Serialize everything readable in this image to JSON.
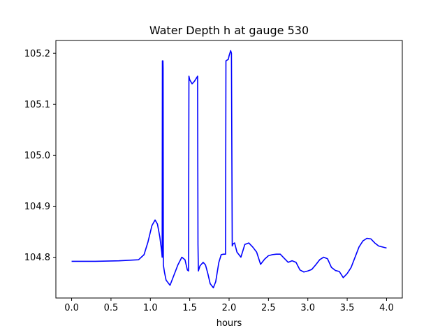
{
  "chart_data": {
    "type": "line",
    "title": "Water Depth h at gauge 530",
    "xlabel": "hours",
    "ylabel": "",
    "xlim": [
      -0.2,
      4.2
    ],
    "ylim": [
      104.72,
      105.225
    ],
    "x_ticks": [
      0.0,
      0.5,
      1.0,
      1.5,
      2.0,
      2.5,
      3.0,
      3.5,
      4.0
    ],
    "x_tick_labels": [
      "0.0",
      "0.5",
      "1.0",
      "1.5",
      "2.0",
      "2.5",
      "3.0",
      "3.5",
      "4.0"
    ],
    "y_ticks": [
      104.8,
      104.9,
      105.0,
      105.1,
      105.2
    ],
    "y_tick_labels": [
      "104.8",
      "104.9",
      "105.0",
      "105.1",
      "105.2"
    ],
    "grid": false,
    "legend": "none",
    "series": [
      {
        "color": "#0000ff",
        "x": [
          0.0,
          0.3,
          0.6,
          0.85,
          0.92,
          0.97,
          1.02,
          1.06,
          1.09,
          1.12,
          1.145,
          1.15,
          1.153,
          1.16,
          1.162,
          1.165,
          1.18,
          1.2,
          1.25,
          1.3,
          1.35,
          1.4,
          1.44,
          1.47,
          1.485,
          1.49,
          1.5,
          1.53,
          1.56,
          1.6,
          1.605,
          1.61,
          1.63,
          1.67,
          1.7,
          1.73,
          1.76,
          1.8,
          1.83,
          1.87,
          1.9,
          1.93,
          1.955,
          1.96,
          1.99,
          2.0,
          2.02,
          2.03,
          2.04,
          2.05,
          2.07,
          2.1,
          2.15,
          2.2,
          2.25,
          2.3,
          2.35,
          2.4,
          2.45,
          2.5,
          2.55,
          2.6,
          2.65,
          2.7,
          2.75,
          2.8,
          2.85,
          2.9,
          2.95,
          3.0,
          3.05,
          3.1,
          3.15,
          3.2,
          3.25,
          3.3,
          3.35,
          3.4,
          3.45,
          3.5,
          3.55,
          3.6,
          3.65,
          3.7,
          3.75,
          3.8,
          3.85,
          3.9,
          4.0
        ],
        "y": [
          104.792,
          104.792,
          104.793,
          104.795,
          104.805,
          104.83,
          104.862,
          104.873,
          104.865,
          104.84,
          104.81,
          104.8,
          105.185,
          105.185,
          105.17,
          104.785,
          104.77,
          104.755,
          104.745,
          104.765,
          104.785,
          104.8,
          104.795,
          104.775,
          104.773,
          105.155,
          105.148,
          105.14,
          105.145,
          105.155,
          104.825,
          104.773,
          104.783,
          104.79,
          104.785,
          104.768,
          104.748,
          104.74,
          104.752,
          104.79,
          104.805,
          104.806,
          104.806,
          105.185,
          105.188,
          105.195,
          105.205,
          105.2,
          104.822,
          104.826,
          104.828,
          104.81,
          104.8,
          104.825,
          104.828,
          104.82,
          104.81,
          104.786,
          104.796,
          104.803,
          104.805,
          104.806,
          104.806,
          104.798,
          104.79,
          104.793,
          104.79,
          104.775,
          104.771,
          104.773,
          104.776,
          104.785,
          104.795,
          104.8,
          104.797,
          104.78,
          104.774,
          104.772,
          104.76,
          104.768,
          104.78,
          104.8,
          104.82,
          104.832,
          104.837,
          104.836,
          104.828,
          104.822,
          104.818
        ]
      }
    ]
  }
}
